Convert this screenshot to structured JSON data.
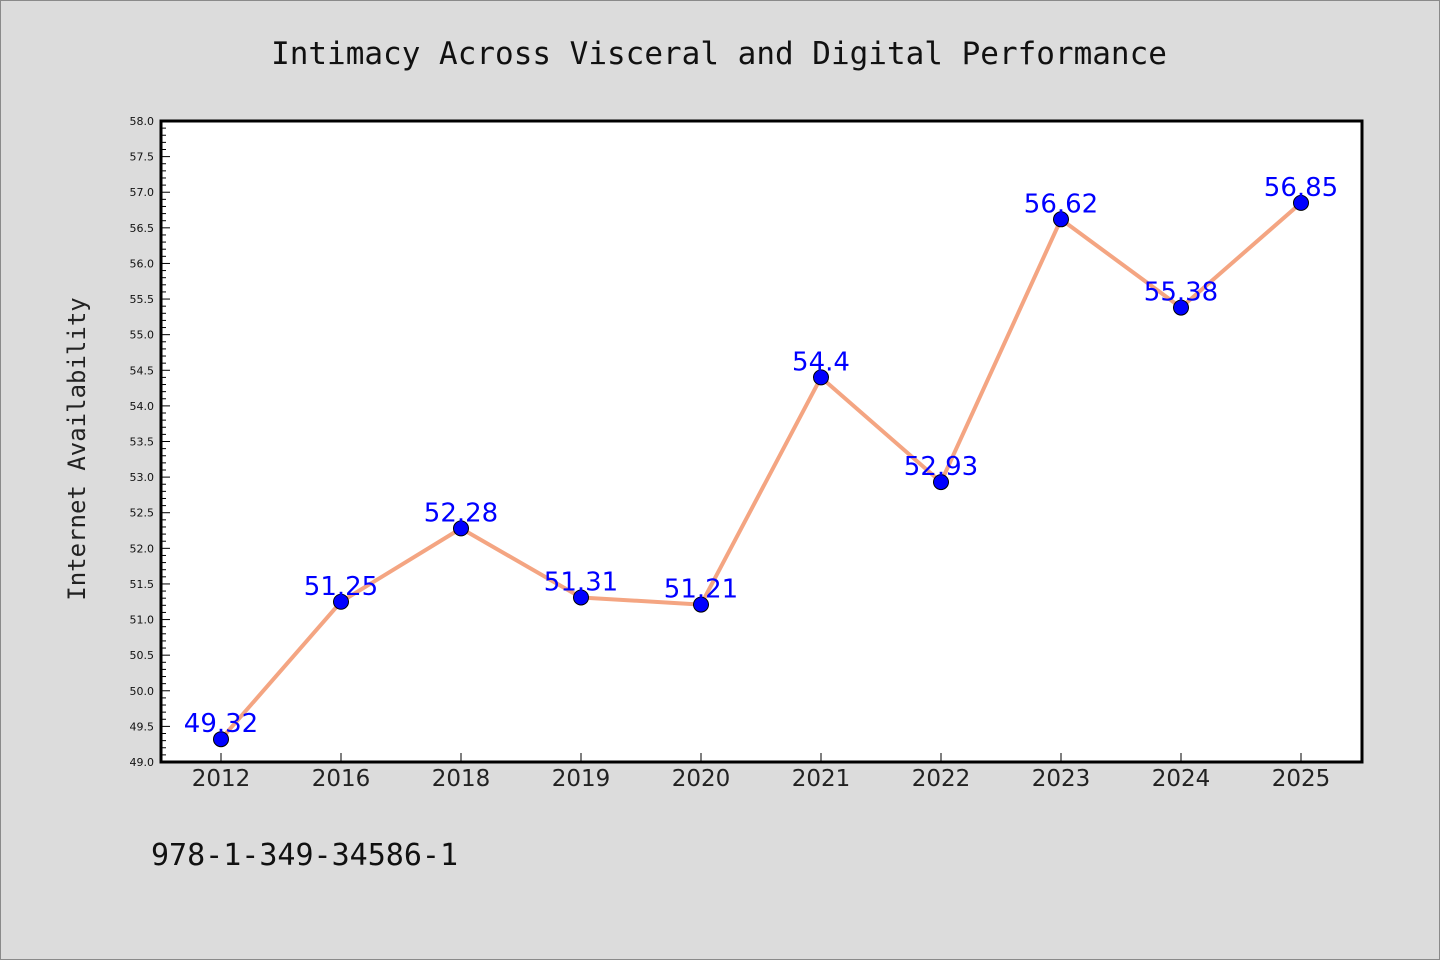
{
  "chart_data": {
    "type": "line",
    "title": "Intimacy Across Visceral and Digital Performance",
    "xlabel": "",
    "ylabel": "Internet Availability",
    "categories": [
      "2012",
      "2016",
      "2018",
      "2019",
      "2020",
      "2021",
      "2022",
      "2023",
      "2024",
      "2025"
    ],
    "values": [
      49.32,
      51.25,
      52.28,
      51.31,
      51.21,
      54.4,
      52.93,
      56.62,
      55.38,
      56.85
    ],
    "data_labels": [
      "49.32",
      "51.25",
      "52.28",
      "51.31",
      "51.21",
      "54.4",
      "52.93",
      "56.62",
      "55.38",
      "56.85"
    ],
    "ylim": [
      49.0,
      58.0
    ],
    "yticks": [
      "49.0",
      "49.5",
      "50.0",
      "50.5",
      "51.0",
      "51.5",
      "52.0",
      "52.5",
      "53.0",
      "53.5",
      "54.0",
      "54.5",
      "55.0",
      "55.5",
      "56.0",
      "56.5",
      "57.0",
      "57.5",
      "58.0"
    ],
    "grid": false,
    "legend": "none",
    "colors": {
      "line": "#f4a582",
      "marker": "#0000ff",
      "data_label": "#0000ff",
      "background": "#dcdcdc",
      "plot_background": "#ffffff"
    }
  },
  "footer": {
    "code": "978-1-349-34586-1"
  }
}
